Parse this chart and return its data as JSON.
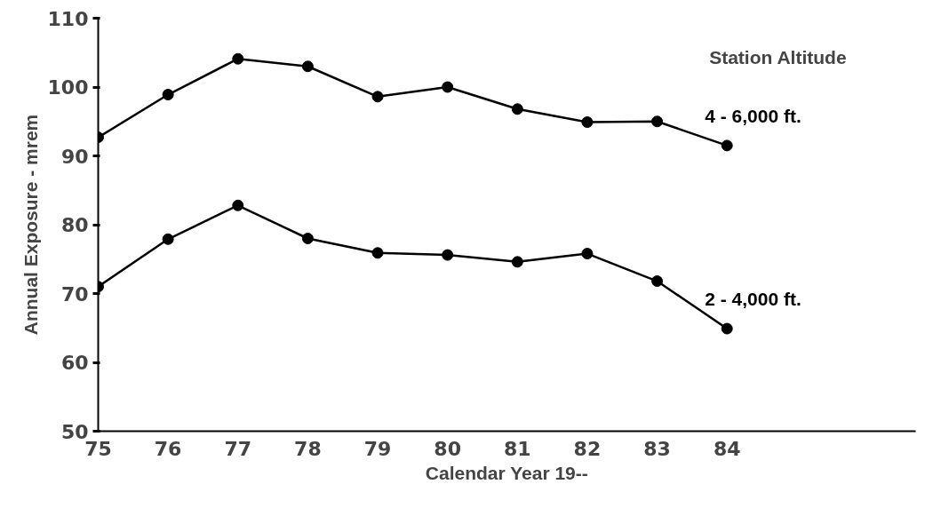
{
  "chart_data": {
    "type": "line",
    "xlabel": "Calendar Year 19--",
    "ylabel": "Annual Exposure - mrem",
    "legend_title": "Station Altitude",
    "x": [
      75,
      76,
      77,
      78,
      79,
      80,
      81,
      82,
      83,
      84
    ],
    "series": [
      {
        "name": "4 - 6,000 ft.",
        "color": "#000000",
        "values": [
          92.7,
          98.9,
          104.1,
          103,
          98.6,
          100,
          96.8,
          94.9,
          95,
          91.5
        ]
      },
      {
        "name": "2 - 4,000 ft.",
        "color": "#000000",
        "values": [
          71,
          77.9,
          82.8,
          78,
          75.9,
          75.6,
          74.6,
          75.8,
          71.8,
          64.9
        ]
      }
    ],
    "xlim": [
      75,
      86.7
    ],
    "xticks": [
      75,
      76,
      77,
      78,
      79,
      80,
      81,
      82,
      83,
      84
    ],
    "ylim": [
      50,
      110
    ],
    "yticks": [
      50,
      60,
      70,
      80,
      90,
      100,
      110
    ],
    "marker": "circle",
    "line_style": "solid",
    "grid": false
  }
}
